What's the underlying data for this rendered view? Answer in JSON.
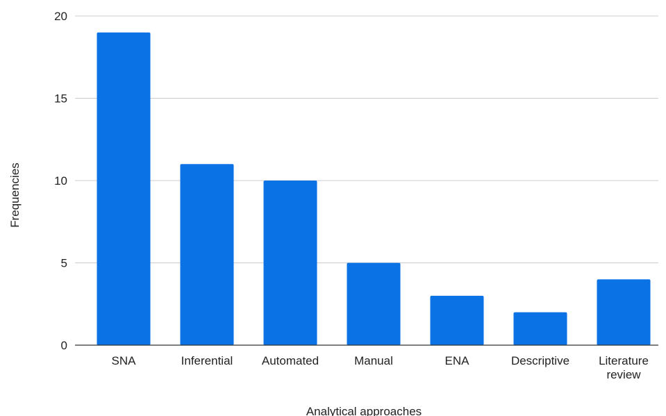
{
  "chart_data": {
    "type": "bar",
    "title": "",
    "xlabel": "Analytical approaches",
    "ylabel": "Frequencies",
    "categories": [
      "SNA",
      "Inferential",
      "Automated",
      "Manual",
      "ENA",
      "Descriptive",
      "Literature review"
    ],
    "values": [
      19,
      11,
      10,
      5,
      3,
      2,
      4
    ],
    "ylim": [
      0,
      20
    ],
    "yticks": [
      "0",
      "5",
      "10",
      "15",
      "20"
    ],
    "grid": true,
    "legend": "none",
    "bar_color": "#0b72e6"
  }
}
